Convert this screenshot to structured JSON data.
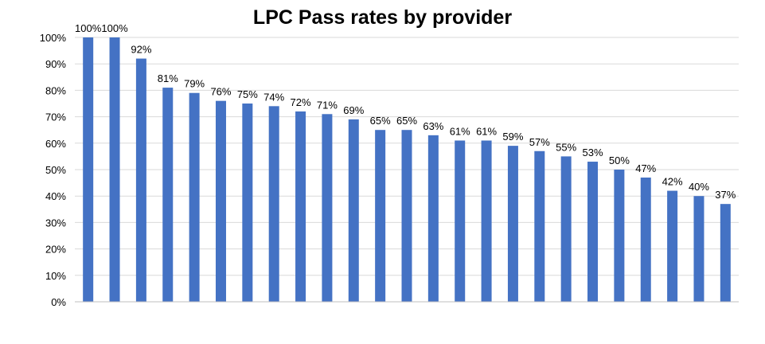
{
  "chart_data": {
    "type": "bar",
    "title": "LPC Pass rates by provider",
    "xlabel": "",
    "ylabel": "",
    "ylim": [
      0,
      100
    ],
    "yticks": [
      0,
      10,
      20,
      30,
      40,
      50,
      60,
      70,
      80,
      90,
      100
    ],
    "ytick_labels": [
      "0%",
      "10%",
      "20%",
      "30%",
      "40%",
      "50%",
      "60%",
      "70%",
      "80%",
      "90%",
      "100%"
    ],
    "values": [
      100,
      100,
      92,
      81,
      79,
      76,
      75,
      74,
      72,
      71,
      69,
      65,
      65,
      63,
      61,
      61,
      59,
      57,
      55,
      53,
      50,
      47,
      42,
      40,
      37
    ],
    "data_labels": [
      "100%",
      "100%",
      "92%",
      "81%",
      "79%",
      "76%",
      "75%",
      "74%",
      "72%",
      "71%",
      "69%",
      "65%",
      "65%",
      "63%",
      "61%",
      "61%",
      "59%",
      "57%",
      "55%",
      "53%",
      "50%",
      "47%",
      "42%",
      "40%",
      "37%"
    ],
    "bar_color": "#4472C4",
    "grid": true,
    "grid_color": "#D9D9D9",
    "axis_color": "#BFBFBF",
    "legend": "none"
  }
}
